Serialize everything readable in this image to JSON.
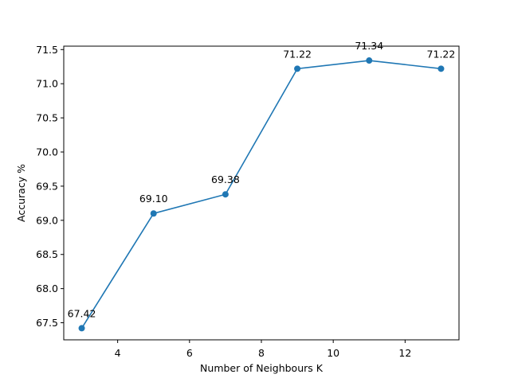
{
  "chart_data": {
    "type": "line",
    "title": "",
    "xlabel": "Number of Neighbours K",
    "ylabel": "Accuracy %",
    "xlim": [
      2.5,
      13.5
    ],
    "ylim": [
      67.25,
      71.55
    ],
    "x_ticks": [
      4,
      6,
      8,
      10,
      12
    ],
    "y_ticks": [
      67.5,
      68.0,
      68.5,
      69.0,
      69.5,
      70.0,
      70.5,
      71.0,
      71.5
    ],
    "x_tick_labels": [
      "4",
      "6",
      "8",
      "10",
      "12"
    ],
    "y_tick_labels": [
      "67.5",
      "68.0",
      "68.5",
      "69.0",
      "69.5",
      "70.0",
      "70.5",
      "71.0",
      "71.5"
    ],
    "grid": false,
    "legend": "none",
    "series": [
      {
        "color": "#1f77b4",
        "marker": "circle",
        "x": [
          3,
          5,
          7,
          9,
          11,
          13
        ],
        "y": [
          67.42,
          69.1,
          69.38,
          71.22,
          71.34,
          71.22
        ],
        "labels": [
          "67.42",
          "69.10",
          "69.38",
          "71.22",
          "71.34",
          "71.22"
        ]
      }
    ]
  }
}
